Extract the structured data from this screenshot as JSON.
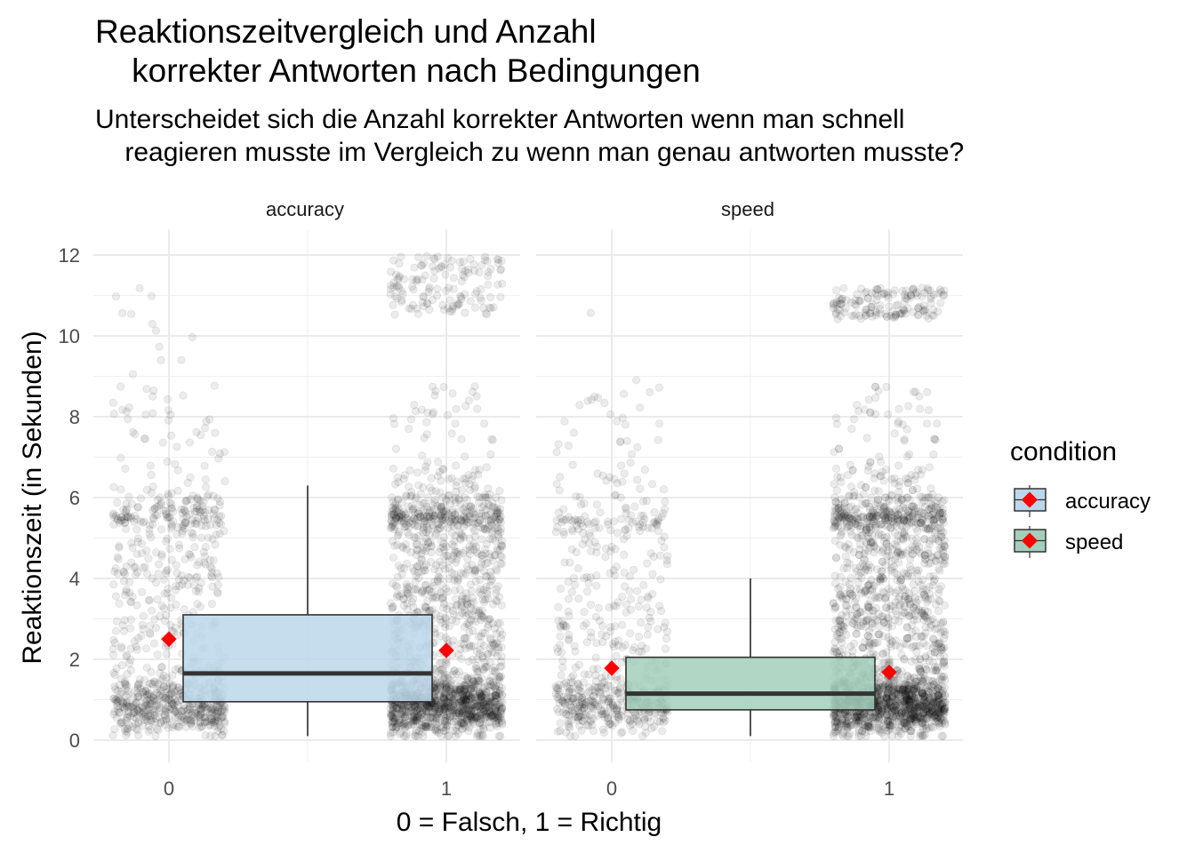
{
  "title": "Reaktionszeitvergleich und Anzahl\n    korrekter Antworten nach Bedingungen",
  "subtitle": "Unterscheidet sich die Anzahl korrekter Antworten wenn man schnell\n    reagieren musste im Vergleich zu wenn man genau antworten musste?",
  "colors": {
    "accuracy": "#bcd7ea",
    "speed": "#a3cfbb",
    "mean_marker": "#ff0000",
    "points": "#000000"
  },
  "chart_data": {
    "type": "boxplot+jitter",
    "title": "Reaktionszeitvergleich und Anzahl korrekter Antworten nach Bedingungen",
    "subtitle": "Unterscheidet sich die Anzahl korrekter Antworten wenn man schnell reagieren musste im Vergleich zu wenn man genau antworten musste?",
    "xlabel": "0 = Falsch, 1 = Richtig",
    "ylabel": "Reaktionszeit (in Sekunden)",
    "x_categories": [
      "0",
      "1"
    ],
    "yticks": [
      "0",
      "2",
      "4",
      "6",
      "8",
      "10",
      "12"
    ],
    "ylim": [
      0,
      12.5
    ],
    "grid": true,
    "legend": {
      "title": "condition",
      "position": "right",
      "entries": [
        "accuracy",
        "speed"
      ]
    },
    "facets": [
      {
        "name": "accuracy",
        "box": {
          "whisker_low": 0.1,
          "q1": 0.95,
          "median": 1.65,
          "q3": 3.1,
          "whisker_high": 6.3
        },
        "means": [
          {
            "x": "0",
            "y": 2.5
          },
          {
            "x": "1",
            "y": 2.22
          }
        ]
      },
      {
        "name": "speed",
        "box": {
          "whisker_low": 0.1,
          "q1": 0.75,
          "median": 1.15,
          "q3": 2.05,
          "whisker_high": 4.0
        },
        "means": [
          {
            "x": "0",
            "y": 1.78
          },
          {
            "x": "1",
            "y": 1.68
          }
        ]
      }
    ]
  }
}
